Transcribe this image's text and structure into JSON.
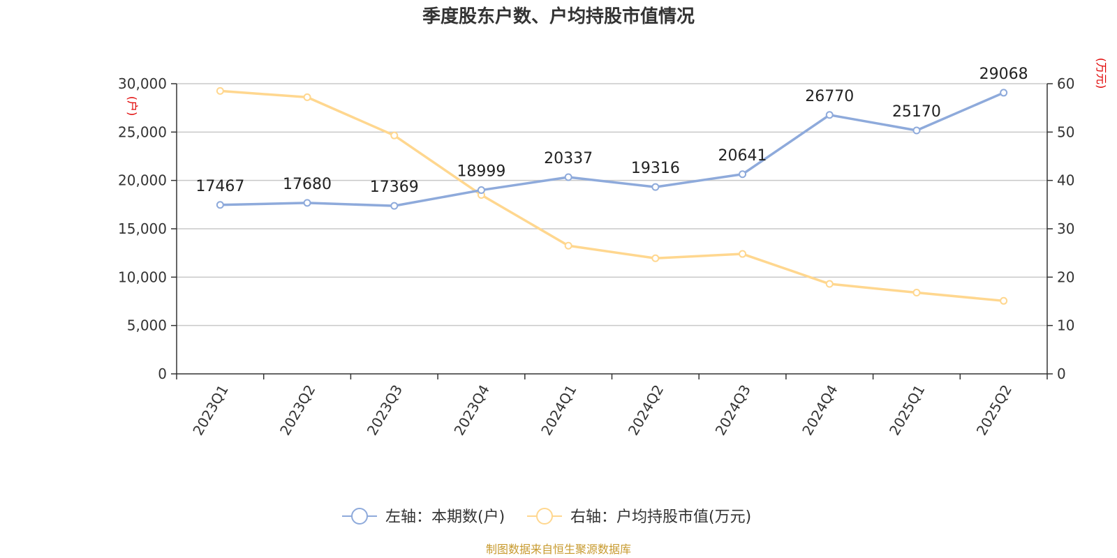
{
  "title": "季度股东户数、户均持股市值情况",
  "source": "制图数据来自恒生聚源数据库",
  "colors": {
    "left_series": "#8eaadb",
    "right_series": "#ffd78f",
    "grid": "#c8c8c8",
    "axis": "#333333",
    "unit": "#e00000",
    "source": "#c79a2e"
  },
  "chart_data": {
    "type": "line",
    "title": "季度股东户数、户均持股市值情况",
    "categories": [
      "2023Q1",
      "2023Q2",
      "2023Q3",
      "2023Q4",
      "2024Q1",
      "2024Q2",
      "2024Q3",
      "2024Q4",
      "2025Q1",
      "2025Q2"
    ],
    "left_axis": {
      "unit": "(户)",
      "ylim": [
        0,
        30000
      ],
      "ticks": [
        0,
        5000,
        10000,
        15000,
        20000,
        25000,
        30000
      ],
      "tick_labels": [
        "0",
        "5,000",
        "10,000",
        "15,000",
        "20,000",
        "25,000",
        "30,000"
      ]
    },
    "right_axis": {
      "unit": "(万元)",
      "ylim": [
        0,
        60
      ],
      "ticks": [
        0,
        10,
        20,
        30,
        40,
        50,
        60
      ],
      "tick_labels": [
        "0",
        "10",
        "20",
        "30",
        "40",
        "50",
        "60"
      ]
    },
    "grid": true,
    "legend_position": "bottom-center",
    "series": [
      {
        "name": "左轴：本期数(户)",
        "axis": "left",
        "values": [
          17467,
          17680,
          17369,
          18999,
          20337,
          19316,
          20641,
          26770,
          25170,
          29068
        ],
        "data_labels": [
          "17467",
          "17680",
          "17369",
          "18999",
          "20337",
          "19316",
          "20641",
          "26770",
          "25170",
          "29068"
        ]
      },
      {
        "name": "右轴：户均持股市值(万元)",
        "axis": "right",
        "values": [
          58.5,
          57.2,
          49.3,
          37.0,
          26.5,
          23.9,
          24.8,
          18.6,
          16.8,
          15.1
        ]
      }
    ]
  }
}
